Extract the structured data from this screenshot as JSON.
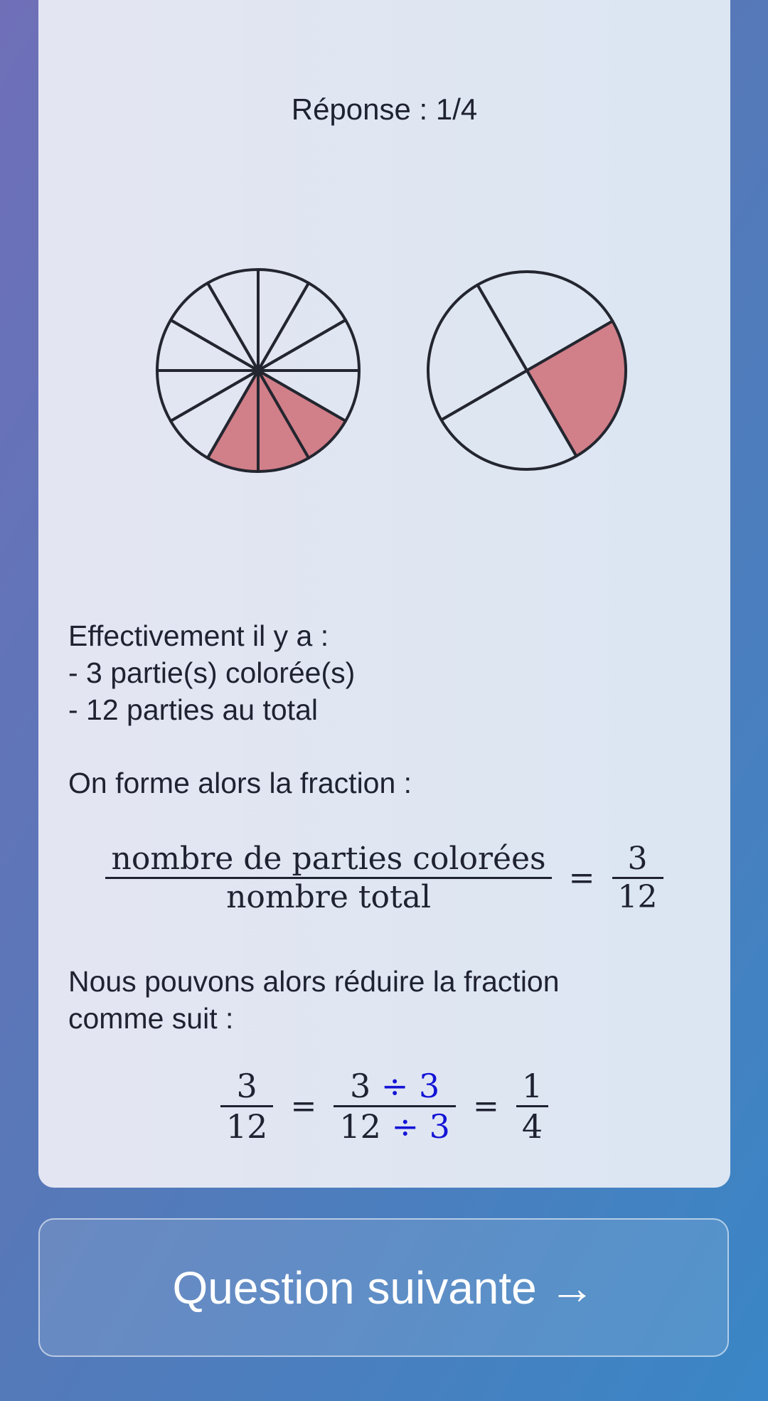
{
  "answer": {
    "label": "Réponse : 1/4"
  },
  "pies": [
    {
      "name": "pie-twelve",
      "parts": 12,
      "colored": 3
    },
    {
      "name": "pie-quarter",
      "parts": 4,
      "colored": 1
    }
  ],
  "explanation": {
    "line1": "Effectivement il y a :",
    "line2": "- 3 partie(s) colorée(s)",
    "line3": "- 12 parties au total",
    "line4": "On forme alors la fraction :",
    "line5": "Nous pouvons alors réduire la fraction",
    "line6": "comme suit :"
  },
  "formula1": {
    "num": "nombre de parties colorées",
    "den": "nombre total",
    "eq": "=",
    "rnum": "3",
    "rden": "12"
  },
  "formula2": {
    "a_num": "3",
    "a_den": "12",
    "eq1": "=",
    "b_num": "3",
    "b_num_op": "÷ 3",
    "b_den": "12",
    "b_den_op": "÷ 3",
    "eq2": "=",
    "c_num": "1",
    "c_den": "4"
  },
  "next_button": {
    "label": "Question suivante →"
  },
  "colors": {
    "colored_slice": "#d17f89",
    "blank_slice": "none",
    "stroke": "#23262f",
    "operator_blue": "#1414d6"
  }
}
